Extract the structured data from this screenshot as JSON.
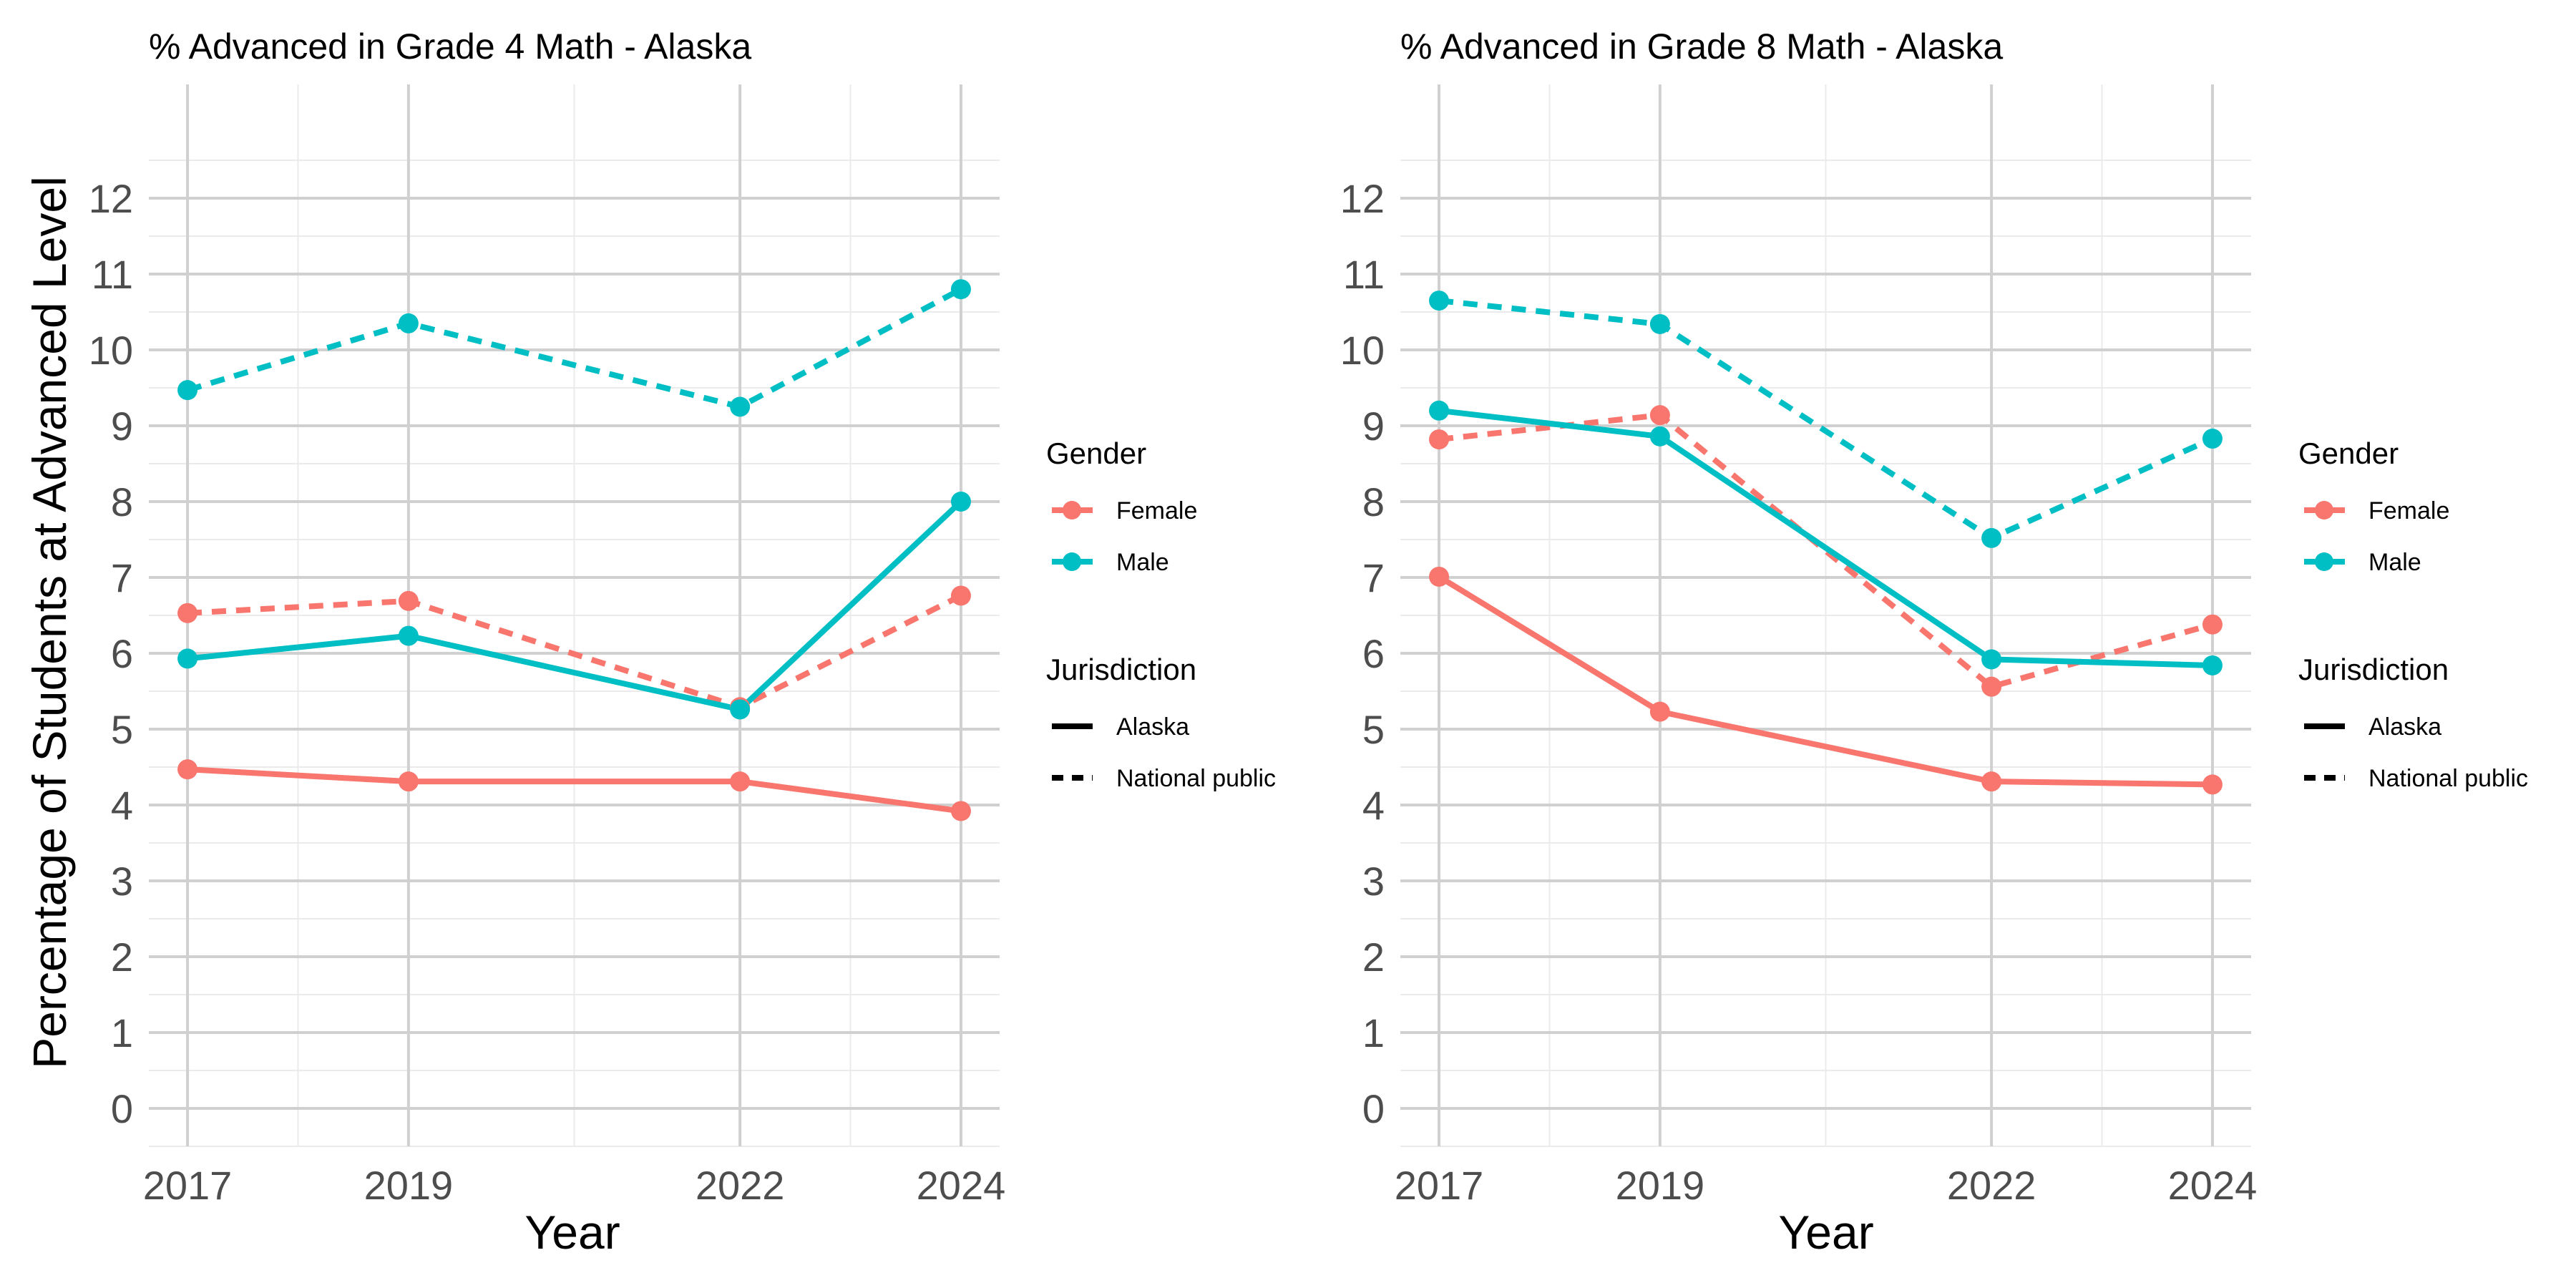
{
  "figure": {
    "ylabel": "Percentage of Students at Advanced Level",
    "legend": {
      "gender_title": "Gender",
      "gender_items": [
        {
          "label": "Female",
          "color": "#F8766D"
        },
        {
          "label": "Male",
          "color": "#00BFC4"
        }
      ],
      "jurisdiction_title": "Jurisdiction",
      "jurisdiction_items": [
        {
          "label": "Alaska",
          "linetype": "solid"
        },
        {
          "label": "National public",
          "linetype": "dashed"
        }
      ]
    }
  },
  "chart_data": [
    {
      "type": "line",
      "title": "% Advanced in Grade 4 Math - Alaska",
      "xlabel": "Year",
      "ylabel": "Percentage of Students at Advanced Level",
      "x": [
        2017,
        2019,
        2022,
        2024
      ],
      "xticks": [
        2017,
        2019,
        2022,
        2024
      ],
      "xlim": [
        2016.65,
        2024.35
      ],
      "yticks": [
        0,
        1,
        2,
        3,
        4,
        5,
        6,
        7,
        8,
        9,
        10,
        11,
        12
      ],
      "ylim": [
        -0.5,
        13.5
      ],
      "grid": true,
      "legend_position": "right",
      "series": [
        {
          "gender": "Female",
          "jurisdiction": "Alaska",
          "color": "#F8766D",
          "linetype": "solid",
          "values": [
            4.47,
            4.31,
            4.31,
            3.92
          ]
        },
        {
          "gender": "Female",
          "jurisdiction": "National public",
          "color": "#F8766D",
          "linetype": "dashed",
          "values": [
            6.53,
            6.69,
            5.29,
            6.76
          ]
        },
        {
          "gender": "Male",
          "jurisdiction": "Alaska",
          "color": "#00BFC4",
          "linetype": "solid",
          "values": [
            5.93,
            6.23,
            5.26,
            8.0
          ]
        },
        {
          "gender": "Male",
          "jurisdiction": "National public",
          "color": "#00BFC4",
          "linetype": "dashed",
          "values": [
            9.47,
            10.35,
            9.25,
            10.8
          ]
        }
      ]
    },
    {
      "type": "line",
      "title": "% Advanced in Grade 8 Math - Alaska",
      "xlabel": "Year",
      "ylabel": "",
      "x": [
        2017,
        2019,
        2022,
        2024
      ],
      "xticks": [
        2017,
        2019,
        2022,
        2024
      ],
      "xlim": [
        2016.65,
        2024.35
      ],
      "yticks": [
        0,
        1,
        2,
        3,
        4,
        5,
        6,
        7,
        8,
        9,
        10,
        11,
        12
      ],
      "ylim": [
        -0.5,
        13.5
      ],
      "grid": true,
      "legend_position": "right",
      "series": [
        {
          "gender": "Female",
          "jurisdiction": "Alaska",
          "color": "#F8766D",
          "linetype": "solid",
          "values": [
            7.01,
            5.23,
            4.31,
            4.27
          ]
        },
        {
          "gender": "Female",
          "jurisdiction": "National public",
          "color": "#F8766D",
          "linetype": "dashed",
          "values": [
            8.82,
            9.14,
            5.56,
            6.38
          ]
        },
        {
          "gender": "Male",
          "jurisdiction": "Alaska",
          "color": "#00BFC4",
          "linetype": "solid",
          "values": [
            9.2,
            8.86,
            5.92,
            5.84
          ]
        },
        {
          "gender": "Male",
          "jurisdiction": "National public",
          "color": "#00BFC4",
          "linetype": "dashed",
          "values": [
            10.65,
            10.34,
            7.52,
            8.83
          ]
        }
      ]
    }
  ]
}
